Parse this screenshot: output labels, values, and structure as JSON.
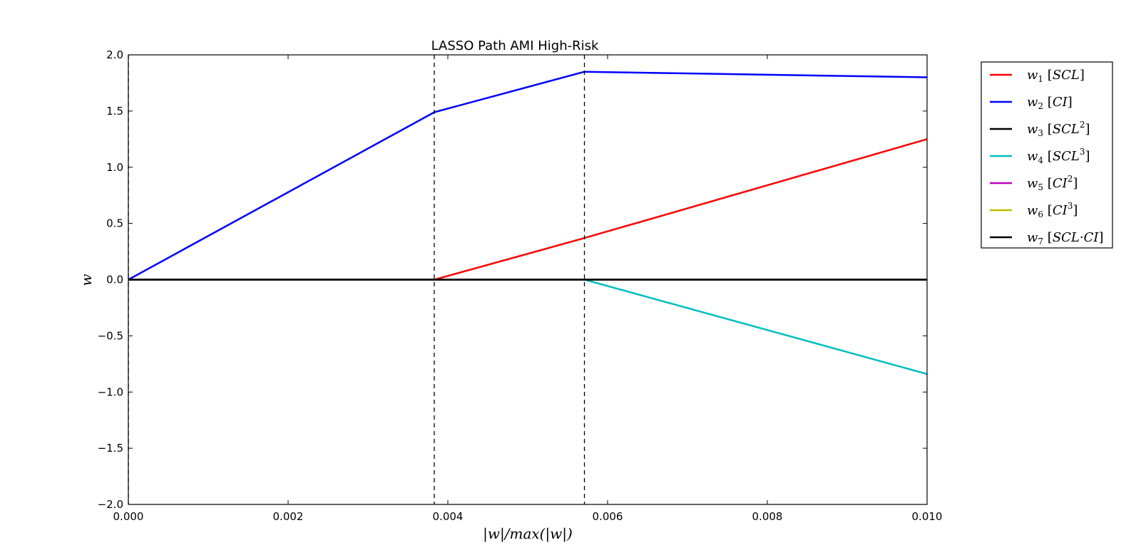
{
  "chart_data": {
    "type": "line",
    "title": "LASSO Path AMI High-Risk",
    "xlabel": "|w|/max(|w|)",
    "ylabel": "w",
    "xlim": [
      0.0,
      0.01
    ],
    "ylim": [
      -2.0,
      2.0
    ],
    "x_ticks": [
      0.0,
      0.002,
      0.004,
      0.006,
      0.008,
      0.01
    ],
    "x_tick_labels": [
      "0.000",
      "0.002",
      "0.004",
      "0.006",
      "0.008",
      "0.010"
    ],
    "y_ticks": [
      2.0,
      1.5,
      1.0,
      0.5,
      0.0,
      -0.5,
      -1.0,
      -1.5,
      -2.0
    ],
    "y_tick_labels": [
      "2.0",
      "1.5",
      "1.0",
      "0.5",
      "0.0",
      "−0.5",
      "−1.0",
      "−1.5",
      "−2.0"
    ],
    "grid": false,
    "legend_position": "outside-right",
    "vlines": [
      0.0,
      0.00383,
      0.00571
    ],
    "series": [
      {
        "name": "w1 [SCL]",
        "label_main": "w",
        "label_sub": "1",
        "label_bracket": "SCL",
        "label_sup": "",
        "color": "#ff0000",
        "x": [
          0.0,
          0.00383,
          0.00571,
          0.01
        ],
        "y": [
          0.0,
          0.0,
          0.37,
          1.25
        ]
      },
      {
        "name": "w2 [CI]",
        "label_main": "w",
        "label_sub": "2",
        "label_bracket": "CI",
        "label_sup": "",
        "color": "#0000ff",
        "x": [
          0.0,
          0.00383,
          0.00571,
          0.01
        ],
        "y": [
          0.0,
          1.49,
          1.85,
          1.8
        ]
      },
      {
        "name": "w3 [SCL2]",
        "label_main": "w",
        "label_sub": "3",
        "label_bracket": "SCL",
        "label_sup": "2",
        "color": "#000000",
        "x": [
          0.0,
          0.01
        ],
        "y": [
          0.0,
          0.0
        ]
      },
      {
        "name": "w4 [SCL3]",
        "label_main": "w",
        "label_sub": "4",
        "label_bracket": "SCL",
        "label_sup": "3",
        "color": "#00bfbf",
        "x": [
          0.0,
          0.00571,
          0.01
        ],
        "y": [
          0.0,
          0.0,
          -0.84
        ]
      },
      {
        "name": "w5 [CI2]",
        "label_main": "w",
        "label_sub": "5",
        "label_bracket": "CI",
        "label_sup": "2",
        "color": "#bf00bf",
        "x": [
          0.0,
          0.01
        ],
        "y": [
          0.0,
          0.0
        ]
      },
      {
        "name": "w6 [CI3]",
        "label_main": "w",
        "label_sub": "6",
        "label_bracket": "CI",
        "label_sup": "3",
        "color": "#bfbf00",
        "x": [
          0.0,
          0.01
        ],
        "y": [
          0.0,
          0.0
        ]
      },
      {
        "name": "w7 [SCL·CI]",
        "label_main": "w",
        "label_sub": "7",
        "label_bracket": "SCL·CI",
        "label_sup": "",
        "color": "#000000",
        "x": [
          0.0,
          0.01
        ],
        "y": [
          0.0,
          0.0
        ]
      }
    ]
  }
}
